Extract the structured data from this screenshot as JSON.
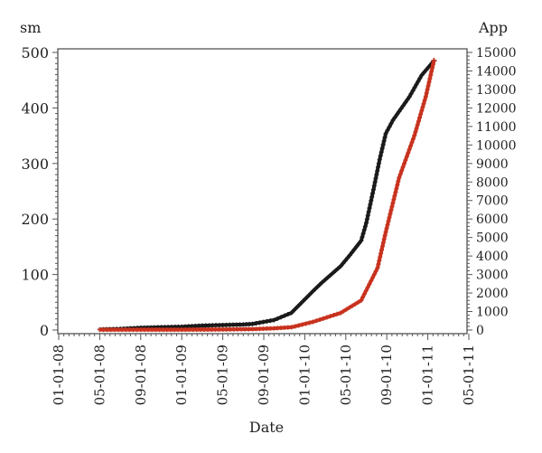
{
  "chart_data": {
    "type": "line",
    "title": "",
    "xlabel": "Date",
    "ylabel_left": "sm",
    "ylabel_right": "App",
    "x_unit": "months since 01-01-08",
    "xlim": [
      0,
      40
    ],
    "x_ticks": [
      {
        "m": 0,
        "label": "01-01-08"
      },
      {
        "m": 4,
        "label": "05-01-08"
      },
      {
        "m": 8,
        "label": "09-01-08"
      },
      {
        "m": 12,
        "label": "01-01-09"
      },
      {
        "m": 16,
        "label": "05-01-09"
      },
      {
        "m": 20,
        "label": "09-01-09"
      },
      {
        "m": 24,
        "label": "01-01-10"
      },
      {
        "m": 28,
        "label": "05-01-10"
      },
      {
        "m": 32,
        "label": "09-01-10"
      },
      {
        "m": 36,
        "label": "01-01-11"
      },
      {
        "m": 40,
        "label": "05-01-11"
      }
    ],
    "ylim_left": [
      0,
      500
    ],
    "y_ticks_left": [
      "0",
      "100",
      "200",
      "300",
      "400",
      "500"
    ],
    "ylim_right": [
      0,
      15000
    ],
    "y_ticks_right": [
      "0",
      "1000",
      "2000",
      "3000",
      "4000",
      "5000",
      "6000",
      "7000",
      "8000",
      "9000",
      "10000",
      "11000",
      "12000",
      "13000",
      "14000",
      "15000"
    ],
    "grid": false,
    "series": [
      {
        "name": "sm",
        "axis": "left",
        "color": "#1a1a1a",
        "x": [
          4,
          6,
          8,
          10,
          12,
          14,
          16,
          18,
          18.9,
          21.0,
          22.7,
          24.8,
          25.7,
          27.5,
          28.4,
          29.5,
          30.0,
          30.7,
          31.3,
          31.9,
          32.6,
          34.2,
          35.4,
          36.6
        ],
        "y": [
          1,
          2,
          4,
          5,
          6,
          8,
          9,
          10,
          11,
          18,
          31,
          70,
          86,
          115,
          135,
          161,
          193,
          253,
          307,
          354,
          378,
          420,
          459,
          485
        ]
      },
      {
        "name": "App",
        "axis": "right",
        "color": "#c8321e",
        "x": [
          4,
          8,
          12,
          16,
          18.9,
          21,
          22.7,
          24.8,
          27.5,
          29.5,
          31.1,
          31.9,
          33.2,
          34.7,
          35.8,
          36.6
        ],
        "y": [
          20,
          20,
          20,
          30,
          50,
          90,
          150,
          440,
          925,
          1600,
          3360,
          5300,
          8230,
          10520,
          12610,
          14560
        ]
      }
    ]
  }
}
